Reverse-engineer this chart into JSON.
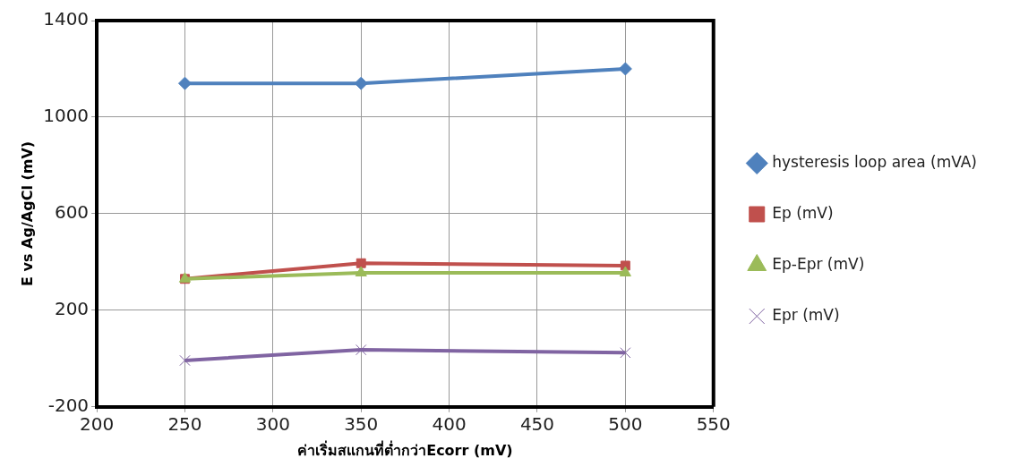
{
  "chart_data": {
    "type": "line",
    "xlabel": "ค่าเริ่มสแกนที่ต่ำกว่าEcorr (mV)",
    "ylabel": "E vs Ag/AgCl (mV)",
    "x": [
      250,
      350,
      500
    ],
    "series": [
      {
        "name": "hysteresis loop area (mVA)",
        "color": "#4f81bd",
        "marker": "diamond",
        "values": [
          1140,
          1140,
          1200
        ]
      },
      {
        "name": "Ep (mV)",
        "color": "#c0504d",
        "marker": "square",
        "values": [
          330,
          395,
          385
        ]
      },
      {
        "name": "Ep-Epr (mV)",
        "color": "#9bbb59",
        "marker": "triangle",
        "values": [
          330,
          355,
          355
        ]
      },
      {
        "name": "Epr (mV)",
        "color": "#8064a2",
        "marker": "cross",
        "values": [
          -8,
          36,
          24
        ]
      }
    ],
    "xlim": [
      200,
      550
    ],
    "xticks": [
      200,
      250,
      300,
      350,
      400,
      450,
      500,
      550
    ],
    "ylim": [
      -200,
      1400
    ],
    "yticks": [
      -200,
      200,
      600,
      1000,
      1400
    ],
    "grid": true,
    "legend": "right",
    "line_style": "solid"
  }
}
